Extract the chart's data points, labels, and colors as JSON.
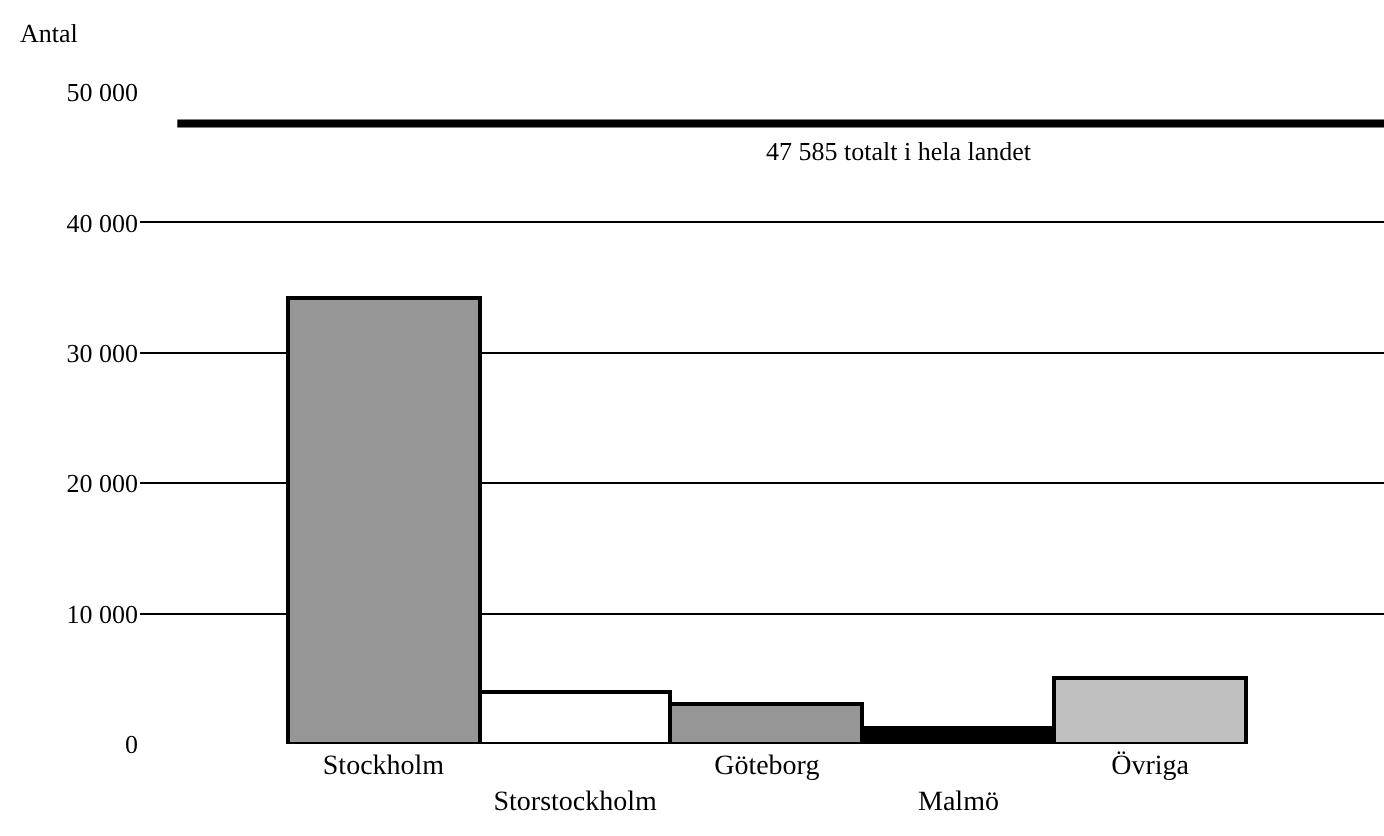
{
  "chart_data": {
    "type": "bar",
    "ylabel": "Antal",
    "categories": [
      "Stockholm",
      "Storstockholm",
      "Göteborg",
      "Malmö",
      "Övriga"
    ],
    "values": [
      34200,
      4000,
      3000,
      1200,
      5000
    ],
    "colors": [
      "#969696",
      "#ffffff",
      "#969696",
      "#000000",
      "#c0c0c0"
    ],
    "ylim": [
      0,
      50000
    ],
    "yticks": [
      {
        "value": 0,
        "label": "0"
      },
      {
        "value": 10000,
        "label": "10 000"
      },
      {
        "value": 20000,
        "label": "20 000"
      },
      {
        "value": 30000,
        "label": "30 000"
      },
      {
        "value": 40000,
        "label": "40 000"
      },
      {
        "value": 50000,
        "label": "50 000"
      }
    ],
    "ref_lines": [
      {
        "axis": "y",
        "value": 47585,
        "label": "47 585 totalt i hela landet",
        "color": "#000000"
      }
    ],
    "grid": "y"
  }
}
